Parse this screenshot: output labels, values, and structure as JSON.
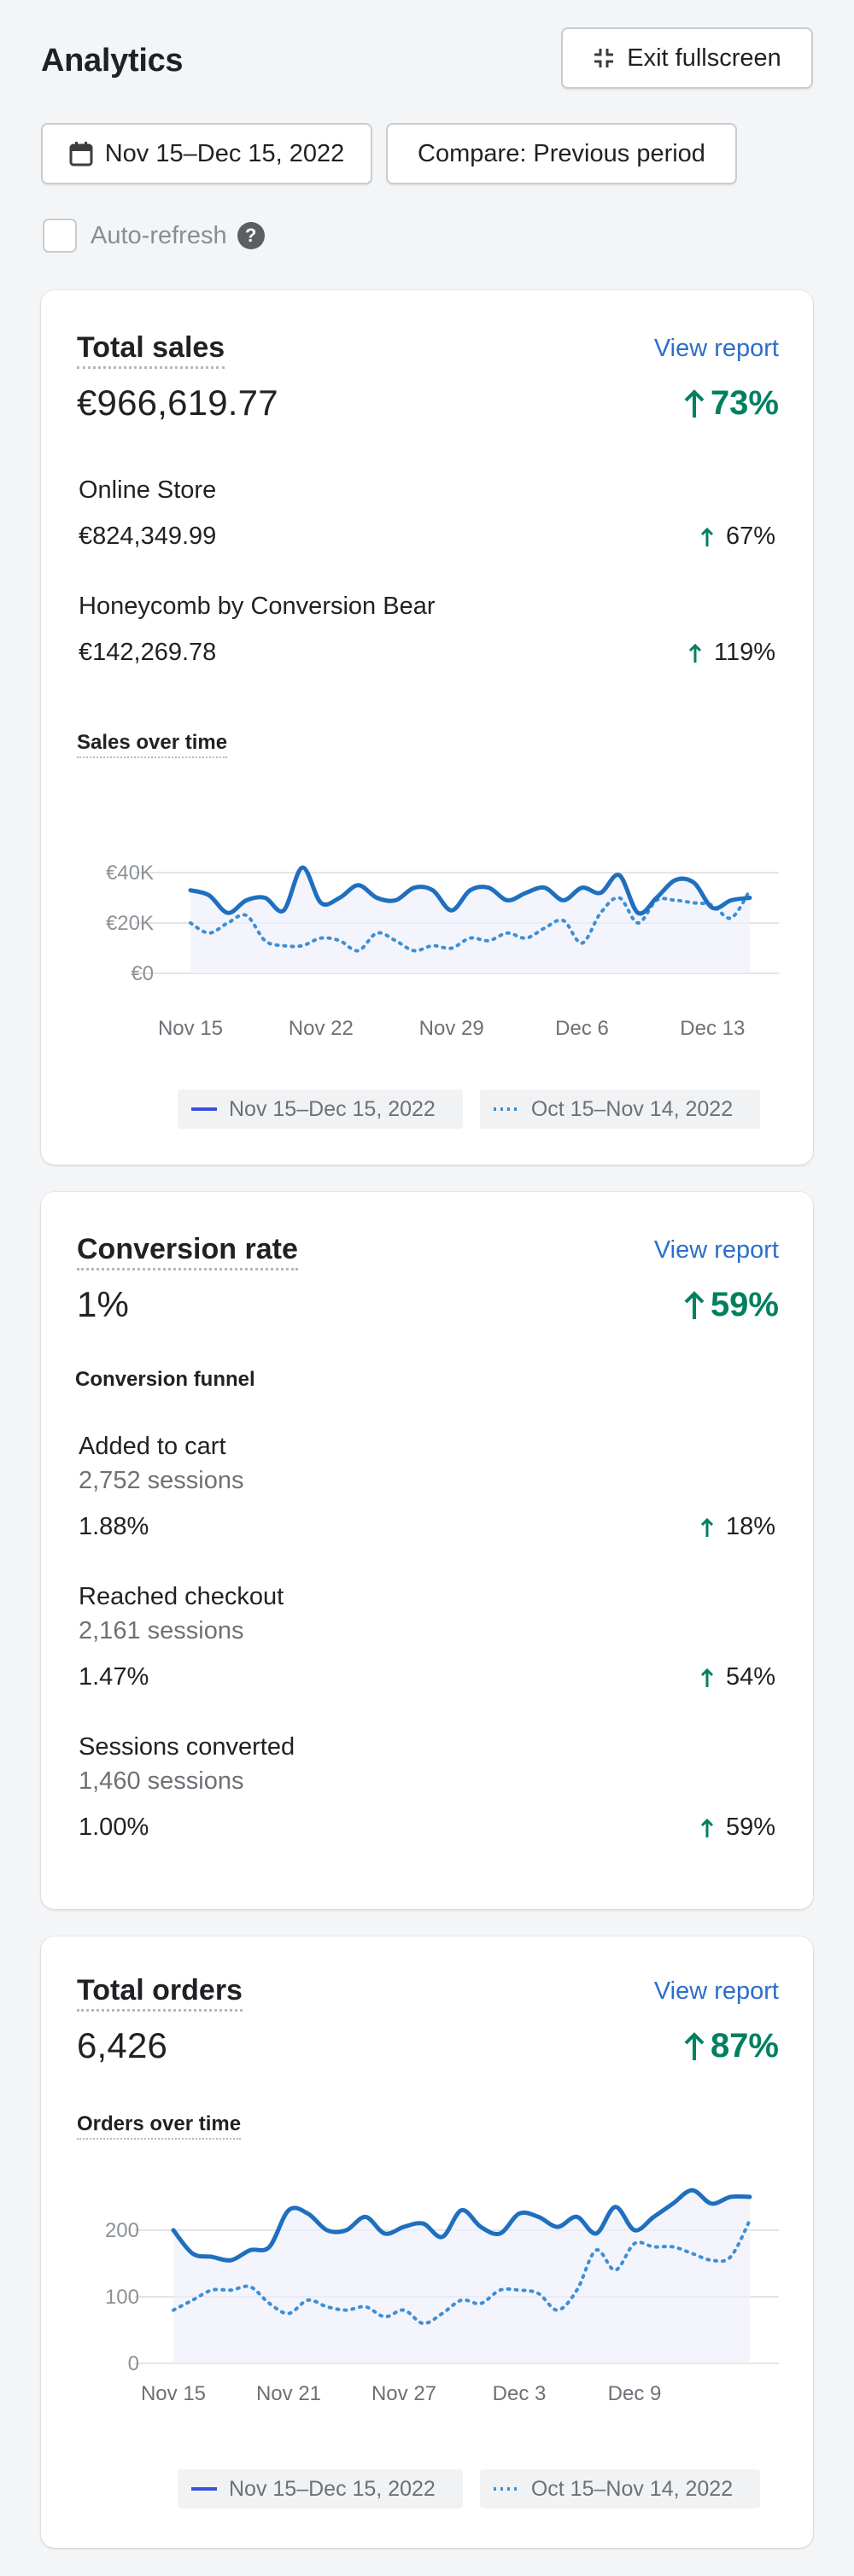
{
  "header": {
    "title": "Analytics",
    "exit_label": "Exit fullscreen",
    "date_label": "Nov 15–Dec 15, 2022",
    "compare_label": "Compare: Previous period",
    "auto_refresh_label": "Auto-refresh",
    "auto_refresh_checked": false
  },
  "total_sales": {
    "title": "Total sales",
    "view_report": "View report",
    "value": "€966,619.77",
    "delta": "73%",
    "channels": [
      {
        "name": "Online Store",
        "value": "€824,349.99",
        "delta": "67%"
      },
      {
        "name": "Honeycomb by Conversion Bear",
        "value": "€142,269.78",
        "delta": "119%"
      }
    ],
    "chart_title": "Sales over time"
  },
  "conversion_rate": {
    "title": "Conversion rate",
    "view_report": "View report",
    "value": "1%",
    "delta": "59%",
    "funnel_title": "Conversion funnel",
    "funnel": [
      {
        "name": "Added to cart",
        "sessions": "2,752 sessions",
        "rate": "1.88%",
        "delta": "18%"
      },
      {
        "name": "Reached checkout",
        "sessions": "2,161 sessions",
        "rate": "1.47%",
        "delta": "54%"
      },
      {
        "name": "Sessions converted",
        "sessions": "1,460 sessions",
        "rate": "1.00%",
        "delta": "59%"
      }
    ]
  },
  "total_orders": {
    "title": "Total orders",
    "view_report": "View report",
    "value": "6,426",
    "delta": "87%",
    "chart_title": "Orders over time"
  },
  "legend": {
    "current": "Nov 15–Dec 15, 2022",
    "previous": "Oct 15–Nov 14, 2022"
  },
  "colors": {
    "current": "#1f6fbf",
    "previous": "#3d8fd6",
    "positive": "#008060",
    "link": "#2c6ecb"
  },
  "chart_data": [
    {
      "type": "line",
      "title": "Sales over time",
      "x_tick_labels": [
        "Nov 15",
        "Nov 22",
        "Nov 29",
        "Dec 6",
        "Dec 13"
      ],
      "y_tick_labels": [
        "€40K",
        "€20K",
        "€0"
      ],
      "ylim": [
        0,
        40000
      ],
      "y_ticks": [
        0,
        20000,
        40000
      ],
      "grid": true,
      "x": [
        "2022-11-15",
        "2022-11-16",
        "2022-11-17",
        "2022-11-18",
        "2022-11-19",
        "2022-11-20",
        "2022-11-21",
        "2022-11-22",
        "2022-11-23",
        "2022-11-24",
        "2022-11-25",
        "2022-11-26",
        "2022-11-27",
        "2022-11-28",
        "2022-11-29",
        "2022-11-30",
        "2022-12-01",
        "2022-12-02",
        "2022-12-03",
        "2022-12-04",
        "2022-12-05",
        "2022-12-06",
        "2022-12-07",
        "2022-12-08",
        "2022-12-09",
        "2022-12-10",
        "2022-12-11",
        "2022-12-12",
        "2022-12-13",
        "2022-12-14",
        "2022-12-15"
      ],
      "series": [
        {
          "name": "Nov 15–Dec 15, 2022",
          "style": "solid",
          "values": [
            33000,
            31000,
            24000,
            29000,
            30000,
            25000,
            42000,
            28000,
            30000,
            35000,
            30000,
            29000,
            34000,
            33000,
            25000,
            33000,
            34000,
            29000,
            32000,
            34000,
            29000,
            34000,
            32000,
            39000,
            24000,
            30000,
            37000,
            36000,
            26000,
            29000,
            30000
          ]
        },
        {
          "name": "Oct 15–Nov 14, 2022",
          "style": "dotted",
          "values": [
            20000,
            16000,
            20000,
            23000,
            13000,
            11000,
            11000,
            14000,
            13000,
            9000,
            16000,
            13000,
            9000,
            11000,
            10000,
            14000,
            13000,
            16000,
            14000,
            18000,
            21000,
            12000,
            24000,
            30000,
            20000,
            29000,
            29000,
            28000,
            27000,
            22000,
            33000
          ]
        }
      ]
    },
    {
      "type": "line",
      "title": "Orders over time",
      "x_tick_labels": [
        "Nov 15",
        "Nov 21",
        "Nov 27",
        "Dec 3",
        "Dec 9"
      ],
      "y_tick_labels": [
        "200",
        "100",
        "0"
      ],
      "ylim": [
        0,
        250
      ],
      "y_ticks": [
        0,
        100,
        200
      ],
      "grid": true,
      "x": [
        "2022-11-15",
        "2022-11-16",
        "2022-11-17",
        "2022-11-18",
        "2022-11-19",
        "2022-11-20",
        "2022-11-21",
        "2022-11-22",
        "2022-11-23",
        "2022-11-24",
        "2022-11-25",
        "2022-11-26",
        "2022-11-27",
        "2022-11-28",
        "2022-11-29",
        "2022-11-30",
        "2022-12-01",
        "2022-12-02",
        "2022-12-03",
        "2022-12-04",
        "2022-12-05",
        "2022-12-06",
        "2022-12-07",
        "2022-12-08",
        "2022-12-09",
        "2022-12-10",
        "2022-12-11",
        "2022-12-12",
        "2022-12-13",
        "2022-12-14",
        "2022-12-15"
      ],
      "series": [
        {
          "name": "Nov 15–Dec 15, 2022",
          "style": "solid",
          "values": [
            200,
            165,
            160,
            155,
            170,
            175,
            230,
            225,
            200,
            200,
            220,
            195,
            205,
            210,
            190,
            230,
            205,
            195,
            225,
            220,
            205,
            220,
            195,
            235,
            200,
            220,
            240,
            260,
            240,
            250,
            250
          ]
        },
        {
          "name": "Oct 15–Nov 14, 2022",
          "style": "dotted",
          "values": [
            80,
            95,
            110,
            110,
            115,
            90,
            75,
            95,
            85,
            80,
            85,
            70,
            80,
            60,
            75,
            95,
            90,
            110,
            110,
            105,
            80,
            110,
            170,
            140,
            180,
            175,
            175,
            165,
            155,
            160,
            215
          ]
        }
      ]
    }
  ]
}
